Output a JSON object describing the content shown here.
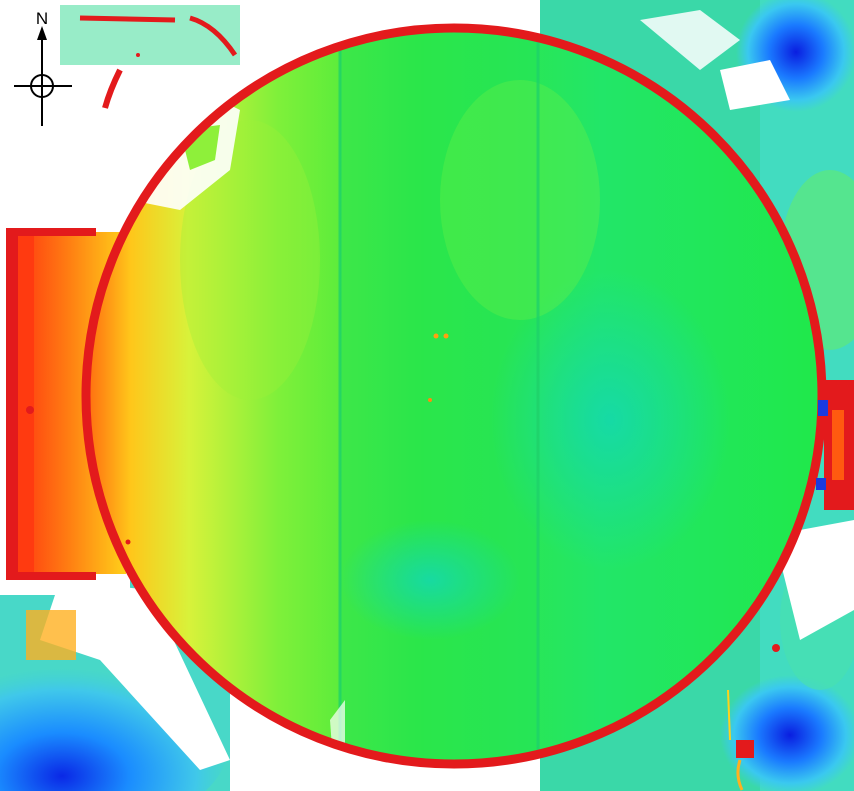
{
  "map": {
    "north_label": "N",
    "colors": {
      "background": "#ffffff",
      "wall": "#e31a1c",
      "floor": "#22e83c",
      "floor_light": "#8ff23a",
      "floor_teal": "#14d9a0",
      "high": "#ff3a10",
      "mid_high": "#ffd21a",
      "low": "#0a22e6",
      "low_mid": "#1aa0ff"
    },
    "icons": [
      "compass-north-arrow",
      "crosshair-icon"
    ]
  }
}
